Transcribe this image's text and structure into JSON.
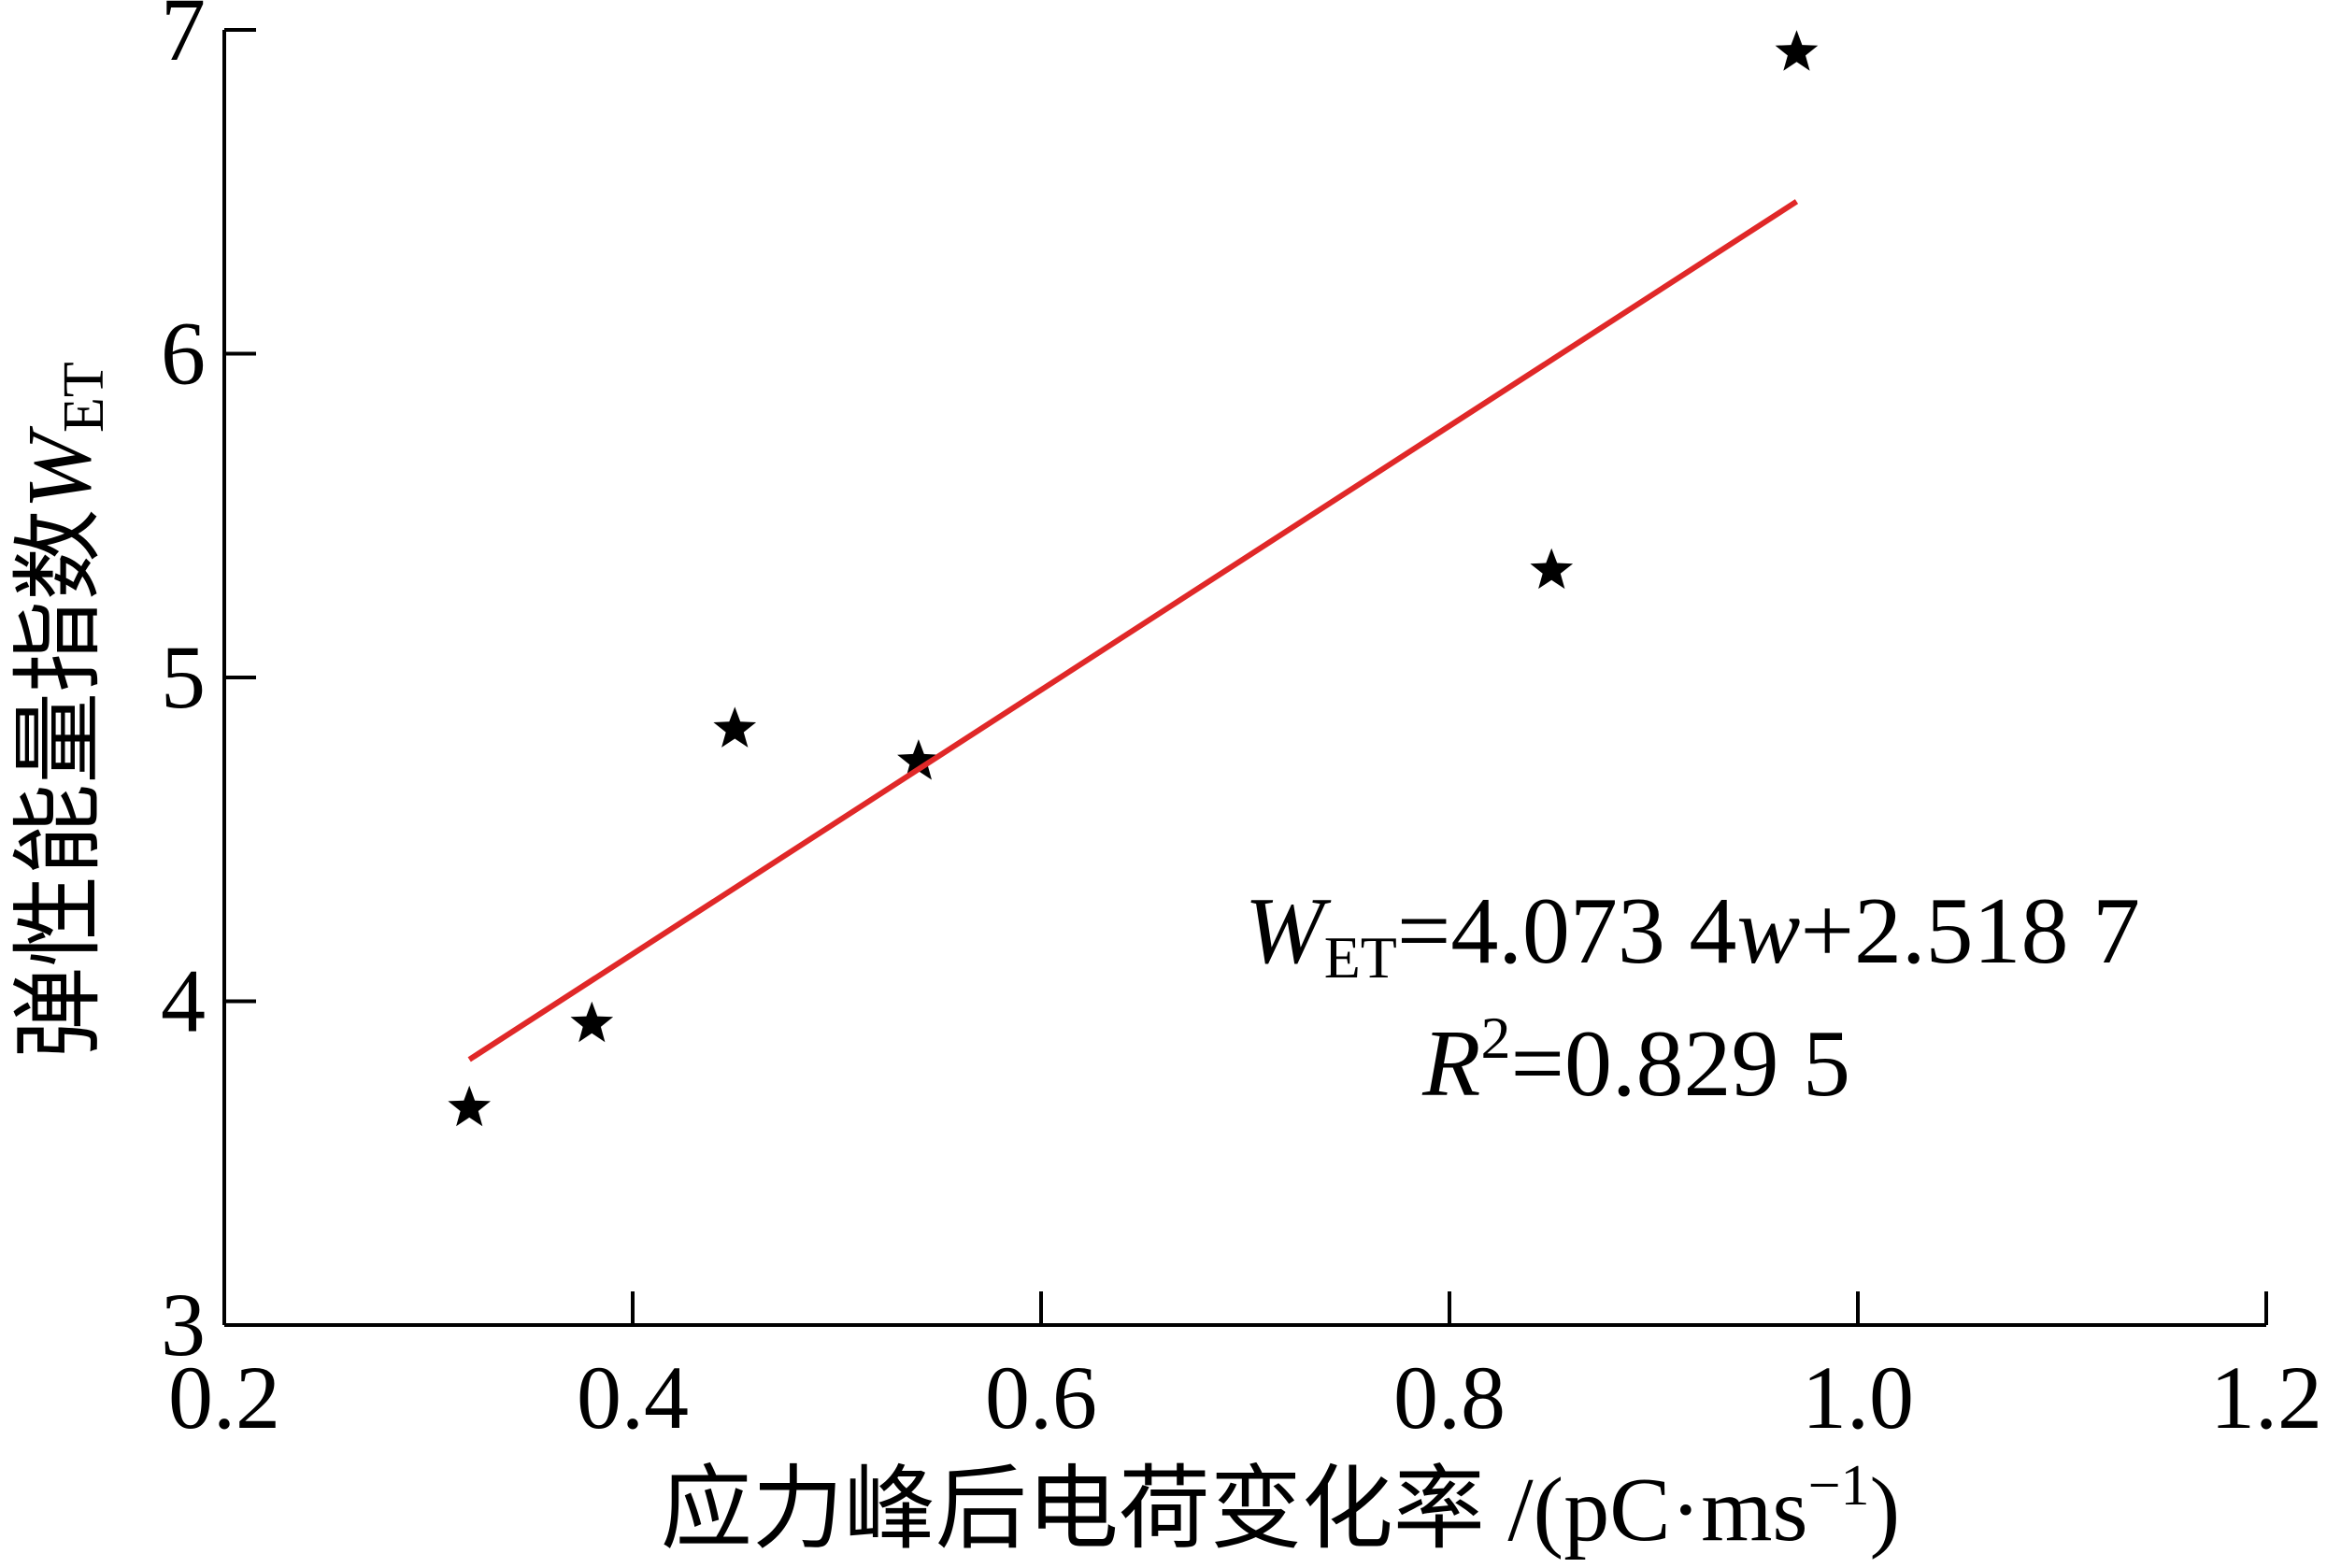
{
  "chart_data": {
    "type": "scatter",
    "x_label": [
      "应力峰后电荷变化率 /(pC·ms",
      "−1",
      ")"
    ],
    "y_label": [
      "弹性能量指数",
      "W",
      "ET"
    ],
    "series": [
      {
        "type": "scatter",
        "color": "#000000",
        "x": [
          0.32,
          0.38,
          0.45,
          0.54,
          0.85,
          0.97
        ],
        "values": [
          3.67,
          3.93,
          4.84,
          4.74,
          5.33,
          6.93
        ]
      },
      {
        "type": "line",
        "color": "#e02828",
        "x": [
          0.32,
          0.97
        ],
        "values": [
          3.82,
          6.47
        ]
      }
    ],
    "annotations": [
      [
        "W",
        "ET",
        "=4.073 4",
        "w",
        "+2.518 7"
      ],
      [
        "R",
        "2",
        "=0.829 5"
      ]
    ],
    "xlim": [
      0.2,
      1.2
    ],
    "xticks": [
      0.2,
      0.4,
      0.6,
      0.8,
      {
        "value": 1,
        "label": "1.0"
      },
      1.2
    ],
    "ylim": [
      3,
      7
    ],
    "yticks": [
      3,
      4,
      5,
      6,
      7
    ]
  }
}
